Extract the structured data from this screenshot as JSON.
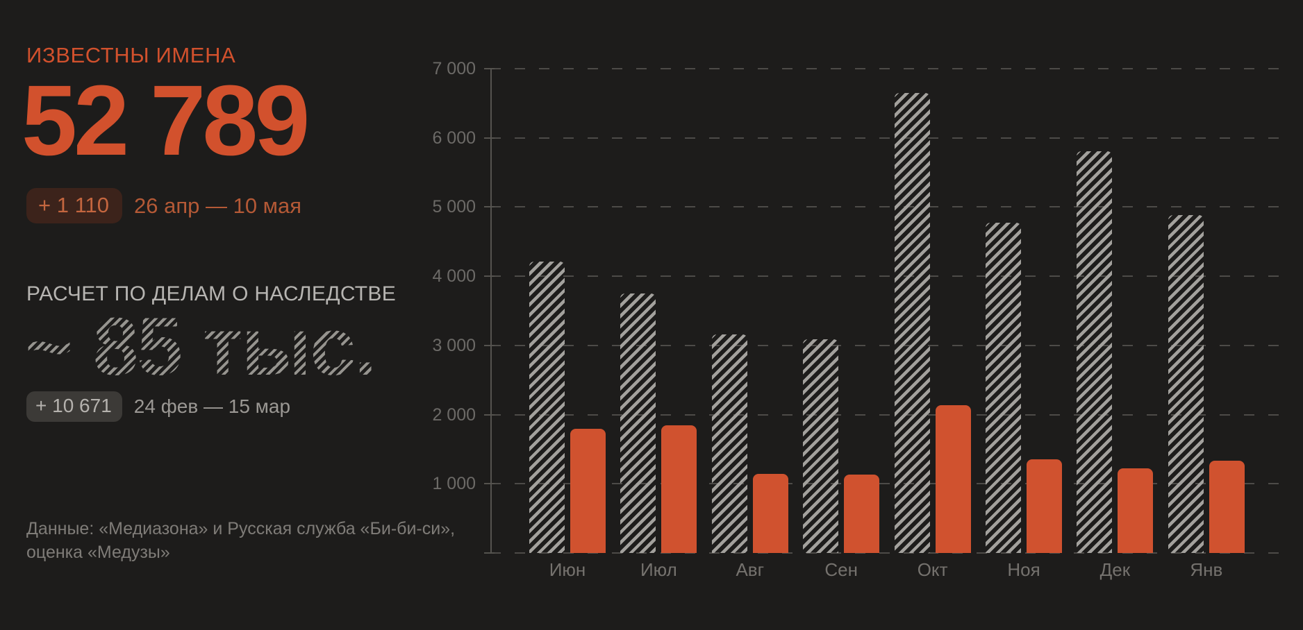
{
  "panel": {
    "title": "ИЗВЕСТНЫ ИМЕНА",
    "big_number": "52 789",
    "delta_badge": "+ 1 110",
    "delta_period": "26 апр — 10 мая",
    "section2_title": "РАСЧЕТ ПО ДЕЛАМ О НАСЛЕДСТВЕ",
    "estimate_number": "~ 85 тыс.",
    "estimate_badge": "+ 10 671",
    "estimate_period": "24 фев — 15 мар",
    "source_line1": "Данные: «Медиазона» и Русская служба «Би-би-си»,",
    "source_line2": "оценка «Медузы»"
  },
  "colors": {
    "background": "#1d1c1b",
    "accent_orange": "#d2512d",
    "bar_orange": "#d0522f",
    "hatch_gray": "#a3a19d",
    "grid_gray": "#4d4b48",
    "label_gray": "#6c6a67"
  },
  "chart_data": {
    "type": "bar",
    "categories": [
      "Июн",
      "Июл",
      "Авг",
      "Сен",
      "Окт",
      "Ноя",
      "Дек",
      "Янв"
    ],
    "series": [
      {
        "name": "оценка по делам о наследстве (штриховка)",
        "style": "hatched",
        "values": [
          4210,
          3750,
          3160,
          3090,
          6650,
          4770,
          5810,
          4880
        ]
      },
      {
        "name": "известны имена (оранжевый)",
        "style": "solid",
        "values": [
          1800,
          1850,
          1140,
          1130,
          2140,
          1350,
          1220,
          1330
        ]
      }
    ],
    "y_ticks": [
      "1 000",
      "2 000",
      "3 000",
      "4 000",
      "5 000",
      "6 000",
      "7 000"
    ],
    "ylim": [
      0,
      7000
    ],
    "grid": "dashed-horizontal",
    "legend": "none"
  }
}
